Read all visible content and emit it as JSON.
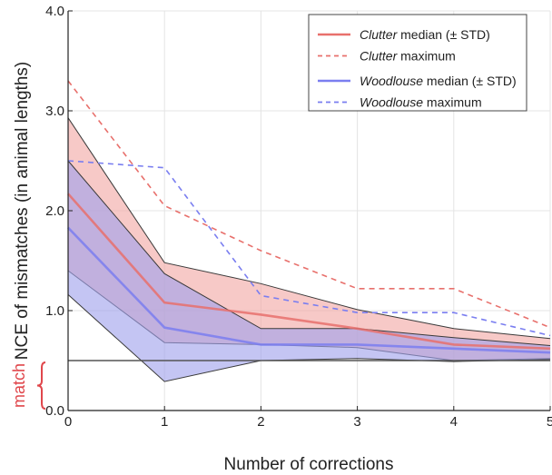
{
  "chart_data": {
    "type": "line",
    "xlabel": "Number of corrections",
    "ylabel": "NCE of mismatches (in animal lengths)",
    "xlim": [
      0,
      5
    ],
    "ylim": [
      0,
      4
    ],
    "x_ticks": [
      "0",
      "1",
      "2",
      "3",
      "4",
      "5"
    ],
    "y_ticks": [
      "0.0",
      "1.0",
      "2.0",
      "3.0",
      "4.0"
    ],
    "grid": true,
    "legend_position": "top-right",
    "x": [
      0,
      1,
      2,
      3,
      4,
      5
    ],
    "series": [
      {
        "name_italic": "Clutter",
        "name_rest": "median (± STD)",
        "kind": "median",
        "color": "#e8706c",
        "band_color": "#f2a8a5",
        "values": [
          2.17,
          1.08,
          0.96,
          0.82,
          0.66,
          0.62
        ],
        "band_upper": [
          2.93,
          1.48,
          1.27,
          1.01,
          0.82,
          0.72
        ],
        "band_lower": [
          1.4,
          0.68,
          0.66,
          0.63,
          0.5,
          0.52
        ]
      },
      {
        "name_italic": "Clutter",
        "name_rest": "maximum",
        "kind": "maximum",
        "color": "#e8706c",
        "values": [
          3.3,
          2.05,
          1.6,
          1.22,
          1.22,
          0.83
        ]
      },
      {
        "name_italic": "Woodlouse",
        "name_rest": "median (± STD)",
        "kind": "median",
        "color": "#7a7ef0",
        "band_color": "#9fa2ec",
        "values": [
          1.83,
          0.83,
          0.66,
          0.66,
          0.62,
          0.58
        ],
        "band_upper": [
          2.5,
          1.37,
          0.82,
          0.82,
          0.73,
          0.65
        ],
        "band_lower": [
          1.16,
          0.29,
          0.5,
          0.52,
          0.49,
          0.51
        ]
      },
      {
        "name_italic": "Woodlouse",
        "name_rest": "maximum",
        "kind": "maximum",
        "color": "#7a7ef0",
        "values": [
          2.5,
          2.43,
          1.15,
          0.98,
          0.98,
          0.75
        ]
      }
    ],
    "reference_line": {
      "y": 0.5,
      "color": "#555555"
    },
    "annotation": {
      "text": "match",
      "range": [
        0.0,
        0.5
      ],
      "color": "#e0474c"
    }
  }
}
